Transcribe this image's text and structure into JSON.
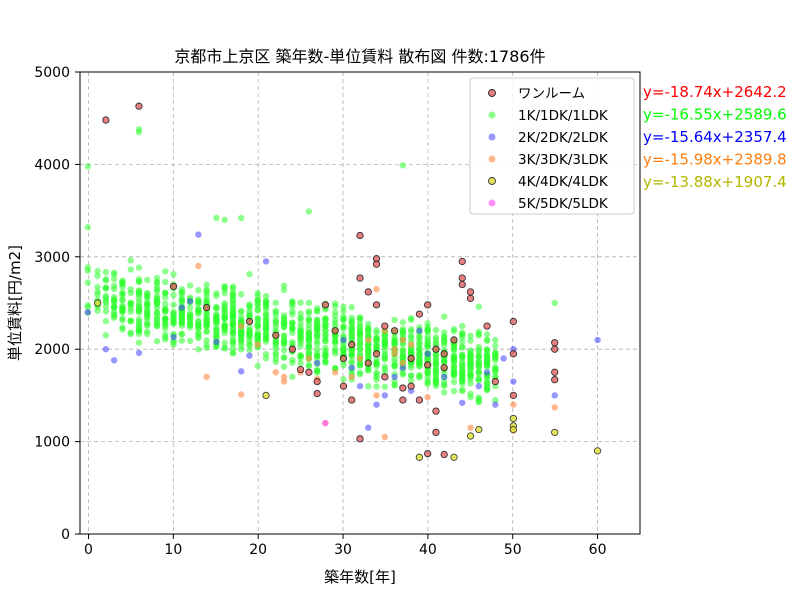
{
  "chart_data": {
    "type": "scatter",
    "title": "京都市上京区 築年数-単位賃料 散布図  件数:1786件",
    "xlabel": "築年数[年]",
    "ylabel": "単位賃料[円/m2]",
    "xlim": [
      -1,
      65
    ],
    "ylim": [
      0,
      5000
    ],
    "xticks": [
      0,
      10,
      20,
      30,
      40,
      50,
      60
    ],
    "yticks": [
      0,
      1000,
      2000,
      3000,
      4000,
      5000
    ],
    "grid": true,
    "legend_position": "top-right",
    "series": [
      {
        "name": "ワンルーム",
        "color": "#e06060",
        "edge": "#202020",
        "alpha": 0.8,
        "points": [
          [
            2,
            4480
          ],
          [
            6,
            4630
          ],
          [
            10,
            2680
          ],
          [
            14,
            2450
          ],
          [
            19,
            2300
          ],
          [
            22,
            2150
          ],
          [
            24,
            2000
          ],
          [
            25,
            1780
          ],
          [
            26,
            1750
          ],
          [
            27,
            1650
          ],
          [
            27,
            1520
          ],
          [
            28,
            2480
          ],
          [
            29,
            2200
          ],
          [
            30,
            1900
          ],
          [
            30,
            1600
          ],
          [
            31,
            1450
          ],
          [
            31,
            2050
          ],
          [
            32,
            3230
          ],
          [
            32,
            2770
          ],
          [
            32,
            1030
          ],
          [
            33,
            1850
          ],
          [
            33,
            2620
          ],
          [
            34,
            2980
          ],
          [
            34,
            2920
          ],
          [
            34,
            2480
          ],
          [
            34,
            1950
          ],
          [
            35,
            2250
          ],
          [
            35,
            1700
          ],
          [
            36,
            2200
          ],
          [
            37,
            1450
          ],
          [
            37,
            1580
          ],
          [
            38,
            1600
          ],
          [
            38,
            1900
          ],
          [
            39,
            2380
          ],
          [
            39,
            1450
          ],
          [
            40,
            2480
          ],
          [
            40,
            1830
          ],
          [
            41,
            1330
          ],
          [
            41,
            1100
          ],
          [
            41,
            2000
          ],
          [
            42,
            1950
          ],
          [
            42,
            1800
          ],
          [
            43,
            2100
          ],
          [
            44,
            2950
          ],
          [
            44,
            2770
          ],
          [
            44,
            2700
          ],
          [
            45,
            2620
          ],
          [
            45,
            2550
          ],
          [
            47,
            2250
          ],
          [
            48,
            1650
          ],
          [
            50,
            2300
          ],
          [
            50,
            1950
          ],
          [
            50,
            1500
          ],
          [
            55,
            2070
          ],
          [
            55,
            2000
          ],
          [
            55,
            1750
          ],
          [
            55,
            1670
          ],
          [
            40,
            870
          ],
          [
            42,
            860
          ]
        ]
      },
      {
        "name": "1K/1DK/1LDK",
        "color": "#30ff30",
        "alpha": 0.55,
        "points": []
      },
      {
        "name": "2K/2DK/2LDK",
        "color": "#4040ff",
        "alpha": 0.55,
        "points": [
          [
            0,
            2400
          ],
          [
            2,
            2000
          ],
          [
            3,
            1880
          ],
          [
            6,
            1960
          ],
          [
            10,
            2130
          ],
          [
            11,
            2450
          ],
          [
            12,
            2520
          ],
          [
            13,
            3240
          ],
          [
            15,
            2080
          ],
          [
            18,
            1760
          ],
          [
            19,
            1930
          ],
          [
            21,
            2950
          ],
          [
            24,
            2000
          ],
          [
            27,
            1850
          ],
          [
            30,
            2100
          ],
          [
            31,
            1800
          ],
          [
            32,
            1600
          ],
          [
            33,
            1150
          ],
          [
            34,
            1400
          ],
          [
            35,
            1500
          ],
          [
            36,
            1700
          ],
          [
            37,
            1800
          ],
          [
            38,
            1550
          ],
          [
            39,
            2200
          ],
          [
            40,
            1950
          ],
          [
            42,
            1700
          ],
          [
            44,
            1420
          ],
          [
            46,
            1600
          ],
          [
            47,
            1750
          ],
          [
            48,
            1400
          ],
          [
            49,
            1900
          ],
          [
            50,
            2000
          ],
          [
            50,
            1650
          ],
          [
            55,
            1500
          ],
          [
            60,
            2100
          ]
        ]
      },
      {
        "name": "3K/3DK/3LDK",
        "color": "#ff9050",
        "alpha": 0.65,
        "points": [
          [
            13,
            2900
          ],
          [
            14,
            1700
          ],
          [
            18,
            1510
          ],
          [
            18,
            2250
          ],
          [
            20,
            2050
          ],
          [
            22,
            1750
          ],
          [
            23,
            1700
          ],
          [
            23,
            1650
          ],
          [
            24,
            2000
          ],
          [
            25,
            1750
          ],
          [
            26,
            1900
          ],
          [
            27,
            1680
          ],
          [
            28,
            1200
          ],
          [
            29,
            1750
          ],
          [
            31,
            1700
          ],
          [
            32,
            1900
          ],
          [
            33,
            2100
          ],
          [
            34,
            2650
          ],
          [
            34,
            1500
          ],
          [
            35,
            1050
          ],
          [
            35,
            2200
          ],
          [
            36,
            2000
          ],
          [
            36,
            1950
          ],
          [
            37,
            1850
          ],
          [
            37,
            2100
          ],
          [
            38,
            2050
          ],
          [
            40,
            1480
          ],
          [
            45,
            1150
          ],
          [
            50,
            1400
          ],
          [
            50,
            1120
          ],
          [
            55,
            1370
          ]
        ]
      },
      {
        "name": "4K/4DK/4LDK",
        "color": "#e0e040",
        "edge": "#303030",
        "alpha": 0.85,
        "points": [
          [
            1,
            2500
          ],
          [
            21,
            1500
          ],
          [
            39,
            830
          ],
          [
            43,
            830
          ],
          [
            45,
            1060
          ],
          [
            46,
            1130
          ],
          [
            50,
            1250
          ],
          [
            50,
            1170
          ],
          [
            50,
            1130
          ],
          [
            55,
            1100
          ],
          [
            60,
            900
          ]
        ]
      },
      {
        "name": "5K/5DK/5LDK",
        "color": "#ff60ff",
        "alpha": 0.7,
        "points": [
          [
            28,
            1200
          ]
        ]
      }
    ],
    "regression_lines": [
      {
        "label": "y=-18.74x+2642.2",
        "color": "#ff0000"
      },
      {
        "label": "y=-16.55x+2589.6",
        "color": "#00ff00"
      },
      {
        "label": "y=-15.64x+2357.4",
        "color": "#0000ff"
      },
      {
        "label": "y=-15.98x+2389.8",
        "color": "#ff7f0e"
      },
      {
        "label": "y=-13.88x+1907.4",
        "color": "#b5b500"
      }
    ]
  }
}
